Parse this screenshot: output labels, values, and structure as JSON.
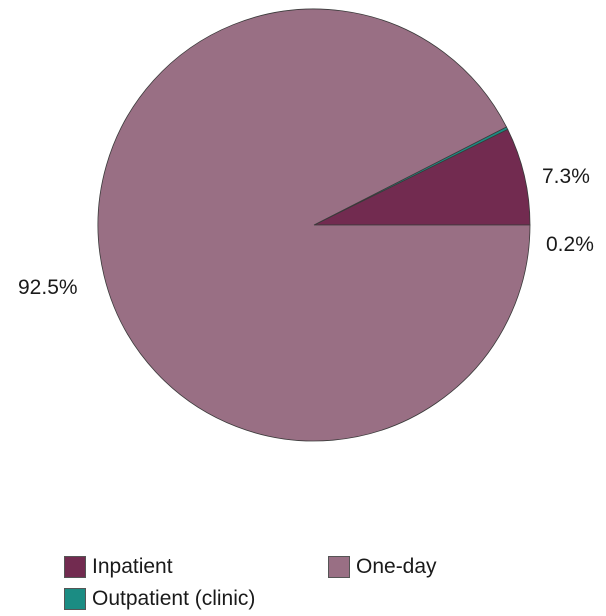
{
  "chart_data": {
    "type": "pie",
    "title": "",
    "start_angle_deg": 0,
    "direction": "counterclockwise",
    "series": [
      {
        "values": [
          7.3,
          0.2,
          92.5
        ],
        "categories": [
          "Inpatient",
          "Outpatient (clinic)",
          "One-day"
        ],
        "labels": [
          "7.3%",
          "0.2%",
          "92.5%"
        ]
      }
    ],
    "legend": {
      "placement": "bottom",
      "entries": [
        "Inpatient",
        "One-day",
        "Outpatient (clinic)"
      ]
    },
    "colors": {
      "Inpatient": "#722b50",
      "One-day": "#996f84",
      "Outpatient (clinic)": "#1b8c83"
    }
  }
}
